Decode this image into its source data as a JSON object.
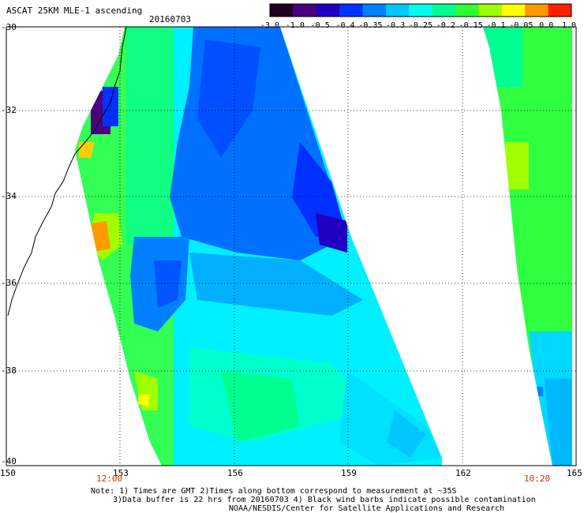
{
  "header": {
    "title": "ASCAT 25KM MLE-1 ascending",
    "date": "20160703"
  },
  "colorbar": {
    "ticks": [
      "-3.0",
      "-1.0",
      "-0.5",
      "-0.4",
      "-0.35",
      "-0.3",
      "-0.25",
      "-0.2",
      "-0.15",
      "-0.1",
      "-0.05",
      "0.0",
      "1.0"
    ],
    "colors": [
      "#200020",
      "#4b0082",
      "#2000c0",
      "#0033ff",
      "#0080ff",
      "#00c8ff",
      "#00ffee",
      "#00ff90",
      "#30ff30",
      "#a0ff00",
      "#ffff00",
      "#ff9900",
      "#ff2000"
    ]
  },
  "map": {
    "lat_range": [
      -40,
      -30
    ],
    "lon_range": [
      150,
      165
    ],
    "y_ticks": [
      "-30",
      "-32",
      "-34",
      "-36",
      "-38",
      "-40"
    ],
    "x_ticks": [
      "150",
      "153",
      "156",
      "159",
      "162",
      "165"
    ],
    "time_labels": [
      "12:00",
      "10:20"
    ],
    "grid": true
  },
  "footer": {
    "line1": "Note: 1) Times are GMT 2)Times along bottom correspond to measurement at ~35S",
    "line2": "3)Data buffer is 22 hrs from 20160703 4) Black wind barbs indicate possible contamination",
    "line3": "NOAA/NESDIS/Center for Satellite Applications and Research"
  }
}
